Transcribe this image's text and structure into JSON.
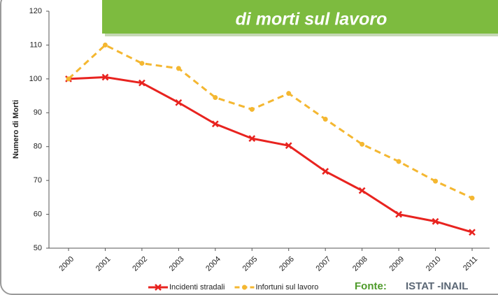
{
  "chart_data": {
    "type": "line",
    "title": "di morti sul lavoro",
    "y_label": "Numero di Morti",
    "categories": [
      "2000",
      "2001",
      "2002",
      "2003",
      "2004",
      "2005",
      "2006",
      "2007",
      "2008",
      "2009",
      "2010",
      "2011"
    ],
    "series": [
      {
        "name": "Incidenti stradali",
        "color": "#e8231f",
        "dashed": false,
        "marker": "x",
        "values": [
          100,
          100.5,
          98.8,
          93,
          86.7,
          82.4,
          80.3,
          72.7,
          67,
          60,
          57.9,
          54.7
        ]
      },
      {
        "name": "Infortuni sul lavoro",
        "color": "#f4b731",
        "dashed": true,
        "marker": "dot",
        "values": [
          100,
          110,
          104.6,
          103.1,
          94.5,
          91,
          95.7,
          88.1,
          80.7,
          75.6,
          69.8,
          64.8
        ]
      }
    ],
    "ylim": [
      50,
      120
    ],
    "yticks": [
      50,
      60,
      70,
      80,
      90,
      100,
      110,
      120
    ],
    "grid": false,
    "source_label": "Fonte:",
    "source": "ISTAT -INAIL"
  }
}
